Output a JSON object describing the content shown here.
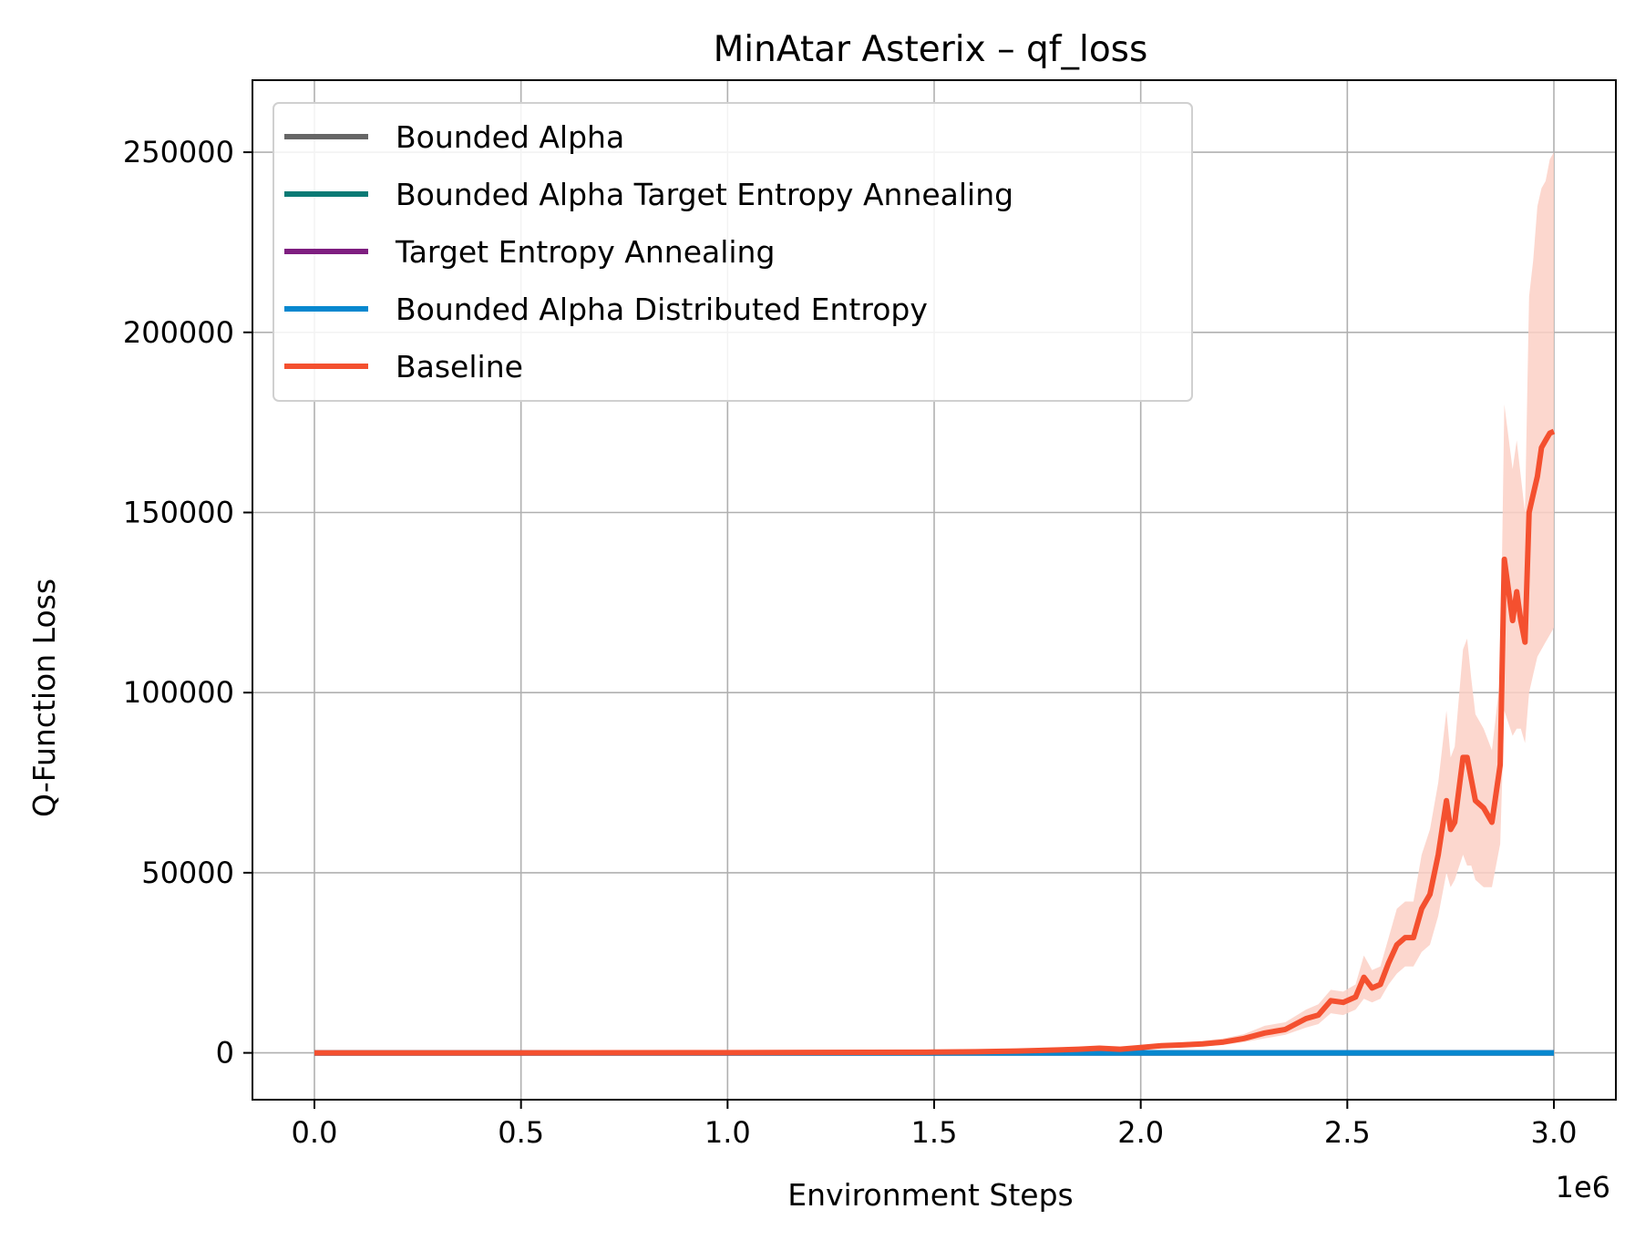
{
  "chart_data": {
    "type": "line",
    "title": "MinAtar Asterix – qf_loss",
    "xlabel": "Environment Steps",
    "ylabel": "Q-Function Loss",
    "x_offset_label": "1e6",
    "xlim": [
      -150000,
      3150000
    ],
    "ylim": [
      -13000,
      270000
    ],
    "grid": true,
    "legend_position": "upper-left",
    "xticks": [
      0,
      500000,
      1000000,
      1500000,
      2000000,
      2500000,
      3000000
    ],
    "xtick_labels": [
      "0.0",
      "0.5",
      "1.0",
      "1.5",
      "2.0",
      "2.5",
      "3.0"
    ],
    "yticks": [
      0,
      50000,
      100000,
      150000,
      200000,
      250000
    ],
    "ytick_labels": [
      "0",
      "50000",
      "100000",
      "150000",
      "200000",
      "250000"
    ],
    "series": [
      {
        "name": "Bounded Alpha",
        "color": "#666666",
        "x": [
          0,
          3000000
        ],
        "y": [
          0,
          0
        ]
      },
      {
        "name": "Bounded Alpha Target Entropy Annealing",
        "color": "#0a7a75",
        "x": [
          0,
          3000000
        ],
        "y": [
          0,
          0
        ]
      },
      {
        "name": "Target Entropy Annealing",
        "color": "#7e1e80",
        "x": [
          0,
          3000000
        ],
        "y": [
          0,
          0
        ]
      },
      {
        "name": "Bounded Alpha Distributed Entropy",
        "color": "#0788cf",
        "x": [
          0,
          3000000
        ],
        "y": [
          0,
          0
        ]
      },
      {
        "name": "Baseline",
        "color": "#f4502f",
        "band_color": "#fbd0c6",
        "x": [
          0,
          500000,
          1000000,
          1500000,
          1600000,
          1700000,
          1800000,
          1850000,
          1900000,
          1950000,
          2000000,
          2050000,
          2100000,
          2150000,
          2200000,
          2250000,
          2300000,
          2350000,
          2400000,
          2430000,
          2460000,
          2490000,
          2520000,
          2540000,
          2560000,
          2580000,
          2600000,
          2620000,
          2640000,
          2660000,
          2680000,
          2700000,
          2720000,
          2740000,
          2750000,
          2760000,
          2780000,
          2790000,
          2800000,
          2810000,
          2830000,
          2850000,
          2870000,
          2880000,
          2900000,
          2910000,
          2920000,
          2930000,
          2940000,
          2950000,
          2960000,
          2970000,
          2980000,
          2990000,
          3000000
        ],
        "y": [
          0,
          0,
          50,
          200,
          300,
          500,
          800,
          1000,
          1300,
          1000,
          1500,
          2000,
          2200,
          2500,
          3000,
          4000,
          5500,
          6500,
          9500,
          10500,
          14500,
          14000,
          15500,
          21000,
          18000,
          19000,
          25000,
          30000,
          32000,
          32000,
          40000,
          44000,
          55000,
          70000,
          62000,
          64000,
          82000,
          82000,
          76000,
          70000,
          68000,
          64000,
          80000,
          137000,
          120000,
          128000,
          120000,
          114000,
          150000,
          155000,
          160000,
          168000,
          170000,
          172000,
          172500
        ],
        "y_low": [
          0,
          0,
          0,
          100,
          150,
          300,
          500,
          700,
          900,
          700,
          1100,
          1400,
          1600,
          1800,
          2200,
          3000,
          4000,
          5000,
          7000,
          8000,
          11000,
          10500,
          12000,
          15000,
          14000,
          15000,
          19000,
          22000,
          24000,
          24000,
          28000,
          30000,
          38000,
          50000,
          46000,
          48000,
          55000,
          52000,
          52000,
          48000,
          46000,
          46000,
          58000,
          95000,
          88000,
          90000,
          90000,
          86000,
          100000,
          105000,
          110000,
          112000,
          114000,
          116000,
          118000
        ],
        "y_high": [
          0,
          0,
          100,
          300,
          450,
          700,
          1100,
          1400,
          1700,
          1400,
          2000,
          2600,
          2900,
          3300,
          4000,
          5200,
          7500,
          8500,
          12000,
          13500,
          17500,
          17000,
          19000,
          27000,
          23000,
          24000,
          32000,
          40000,
          42000,
          42000,
          55000,
          62000,
          75000,
          95000,
          82000,
          85000,
          112000,
          115000,
          104000,
          94000,
          90000,
          84000,
          104000,
          180000,
          162000,
          170000,
          160000,
          150000,
          210000,
          220000,
          235000,
          240000,
          242000,
          248000,
          250000
        ]
      }
    ]
  }
}
